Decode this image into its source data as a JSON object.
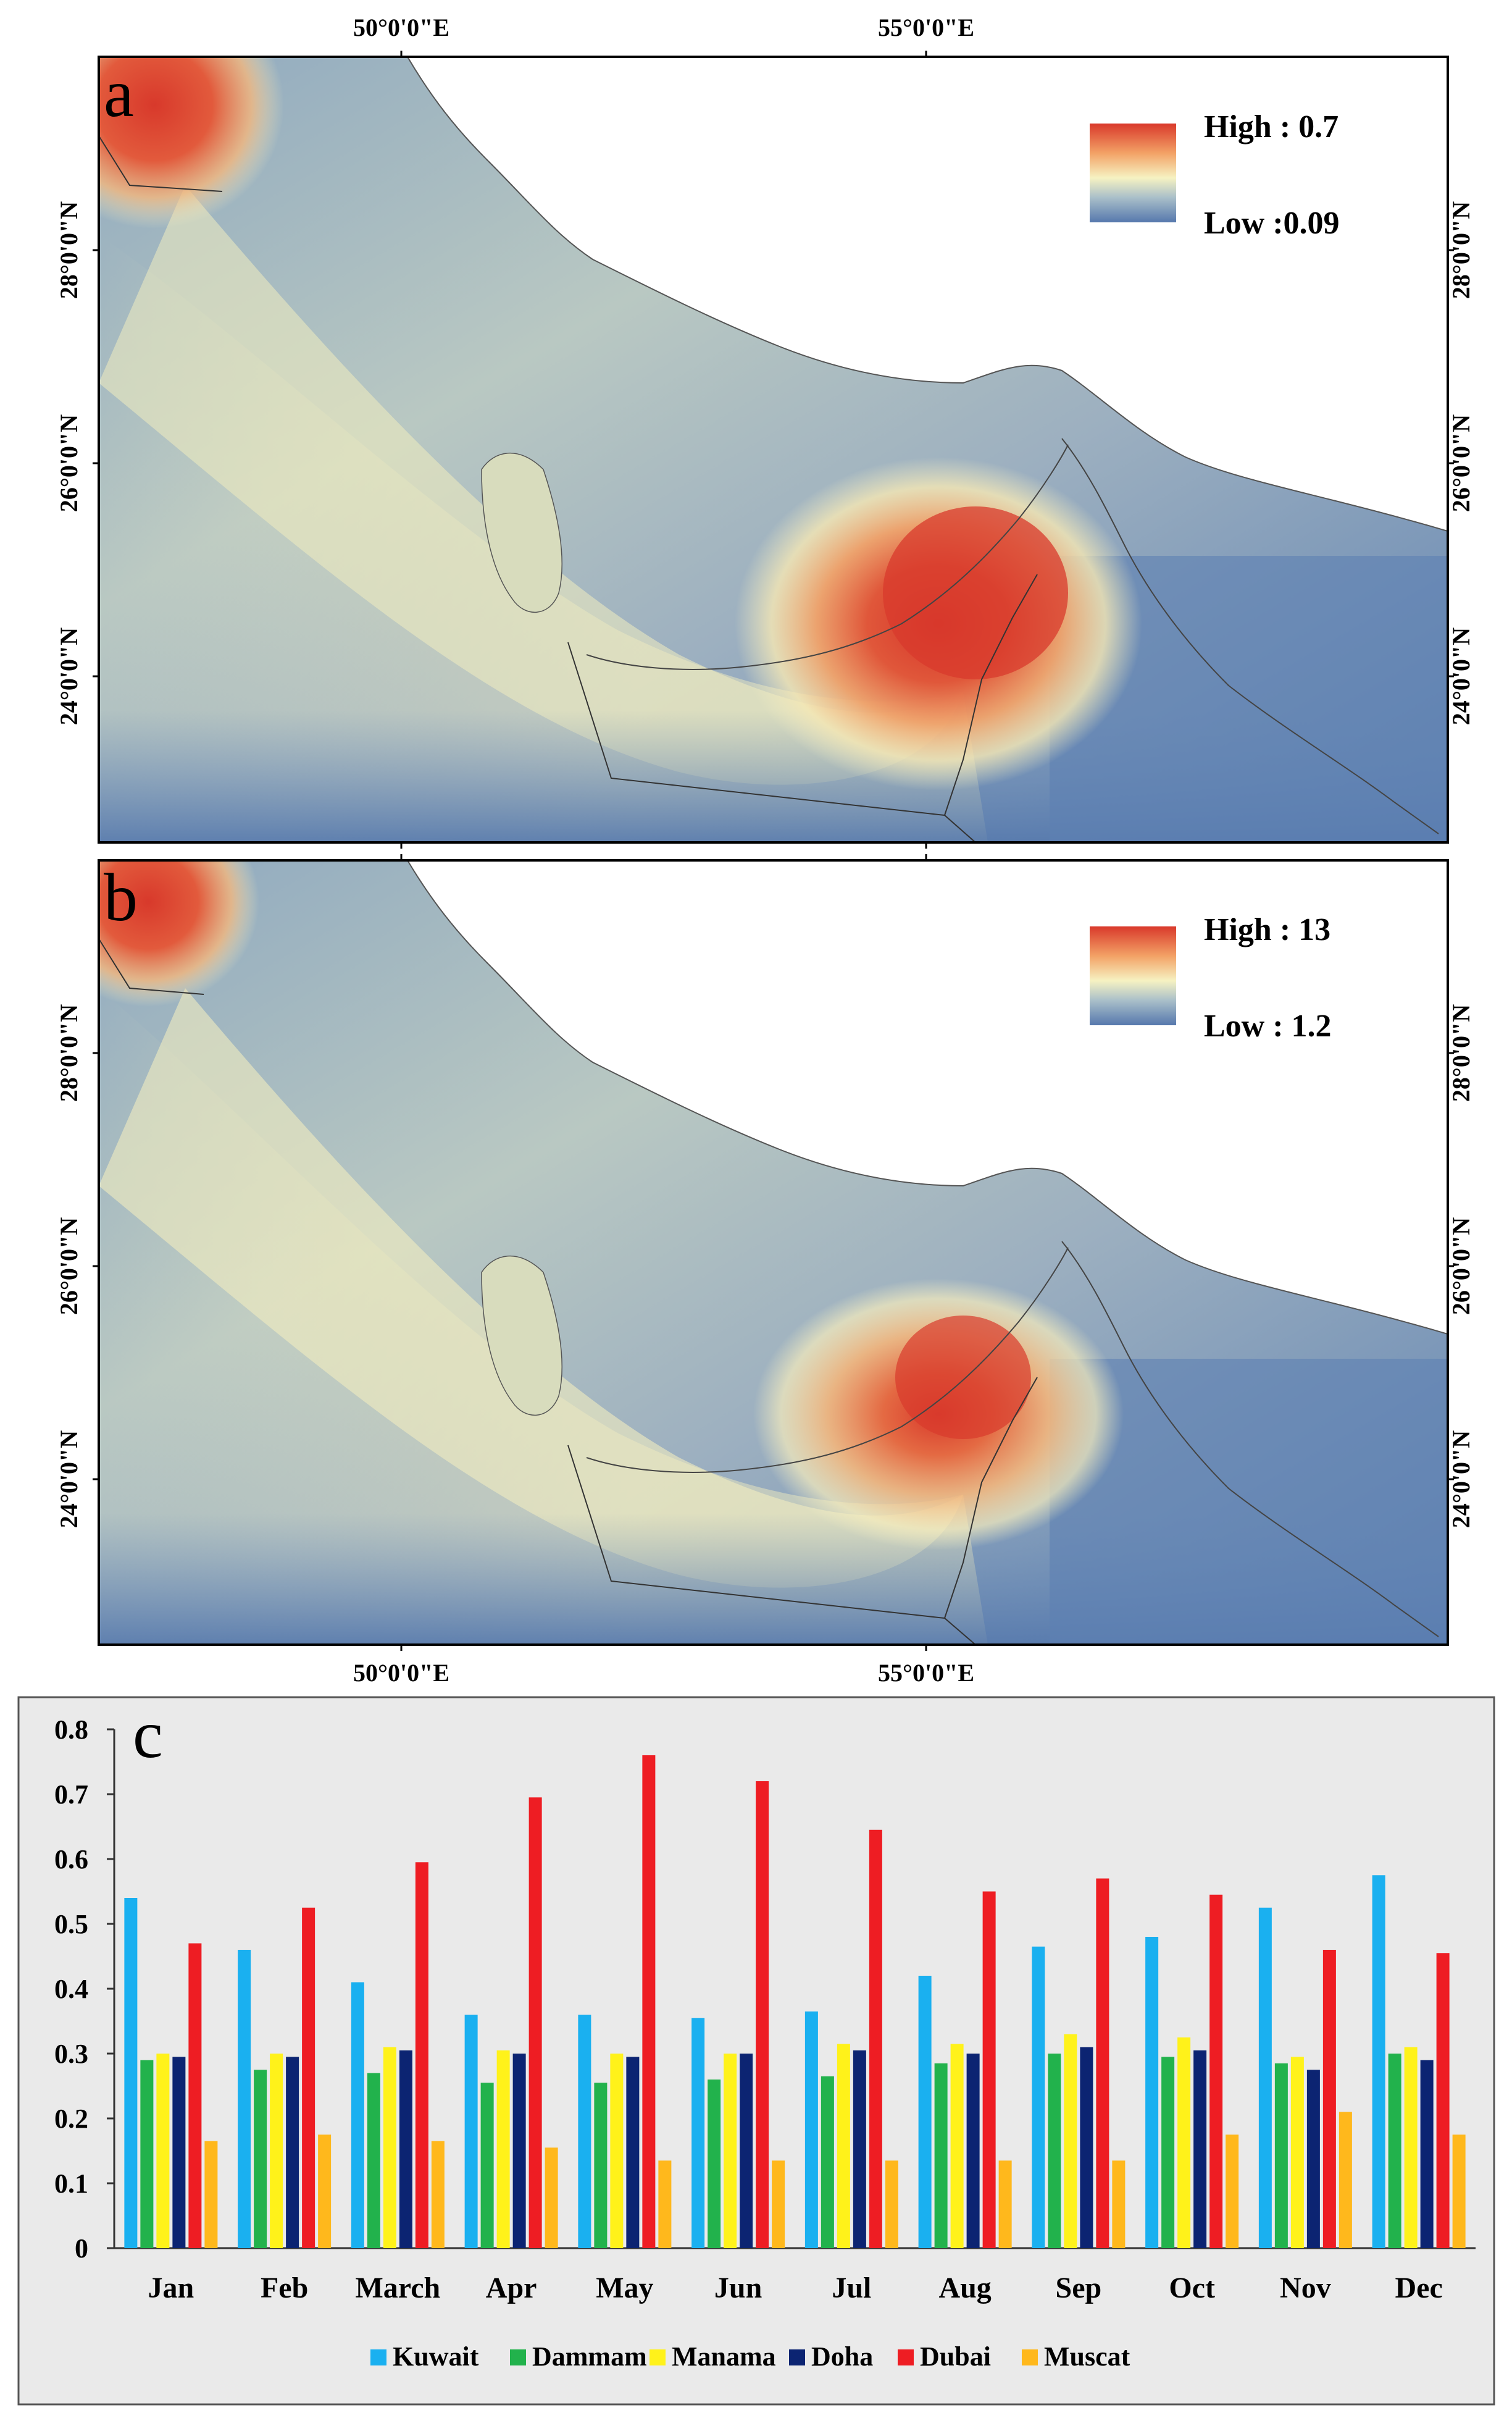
{
  "panel_a": {
    "label": "a",
    "legend": {
      "high": "High : 0.7",
      "low": "Low :0.09"
    },
    "lon_ticks": [
      "50°0'0\"E",
      "55°0'0\"E"
    ],
    "lat_ticks": [
      "28°0'0\"N",
      "26°0'0\"N",
      "24°0'0\"N"
    ]
  },
  "panel_b": {
    "label": "b",
    "legend": {
      "high": "High : 13",
      "low": "Low : 1.2"
    },
    "lon_ticks": [
      "50°0'0\"E",
      "55°0'0\"E"
    ],
    "lat_ticks": [
      "28°0'0\"N",
      "26°0'0\"N",
      "24°0'0\"N"
    ]
  },
  "colors": {
    "map_high": "#d83a2c",
    "map_mid": "#f1edb9",
    "map_low": "#5b80b1",
    "land": "#ffffff",
    "chart_bg": "#eaeaea"
  },
  "chart_data": {
    "type": "bar",
    "label": "c",
    "title": "",
    "xlabel": "",
    "ylabel": "",
    "ylim": [
      0,
      0.8
    ],
    "yticks": [
      "0",
      "0.1",
      "0.2",
      "0.3",
      "0.4",
      "0.5",
      "0.6",
      "0.7",
      "0.8"
    ],
    "grid": false,
    "legend_position": "bottom",
    "categories": [
      "Jan",
      "Feb",
      "March",
      "Apr",
      "May",
      "Jun",
      "Jul",
      "Aug",
      "Sep",
      "Oct",
      "Nov",
      "Dec"
    ],
    "series": [
      {
        "name": "Kuwait",
        "color": "#1ab0f0",
        "values": [
          0.54,
          0.46,
          0.41,
          0.36,
          0.36,
          0.355,
          0.365,
          0.42,
          0.465,
          0.48,
          0.525,
          0.575
        ]
      },
      {
        "name": "Dammam",
        "color": "#22b24c",
        "values": [
          0.29,
          0.275,
          0.27,
          0.255,
          0.255,
          0.26,
          0.265,
          0.285,
          0.3,
          0.295,
          0.285,
          0.3
        ]
      },
      {
        "name": "Manama",
        "color": "#fff21a",
        "values": [
          0.3,
          0.3,
          0.31,
          0.305,
          0.3,
          0.3,
          0.315,
          0.315,
          0.33,
          0.325,
          0.295,
          0.31
        ]
      },
      {
        "name": "Doha",
        "color": "#0c2472",
        "values": [
          0.295,
          0.295,
          0.305,
          0.3,
          0.295,
          0.3,
          0.305,
          0.3,
          0.31,
          0.305,
          0.275,
          0.29
        ]
      },
      {
        "name": "Dubai",
        "color": "#ee1d23",
        "values": [
          0.47,
          0.525,
          0.595,
          0.695,
          0.76,
          0.72,
          0.645,
          0.55,
          0.57,
          0.545,
          0.46,
          0.455
        ]
      },
      {
        "name": "Muscat",
        "color": "#ffb81c",
        "values": [
          0.165,
          0.175,
          0.165,
          0.155,
          0.135,
          0.135,
          0.135,
          0.135,
          0.135,
          0.175,
          0.21,
          0.175
        ]
      }
    ]
  }
}
